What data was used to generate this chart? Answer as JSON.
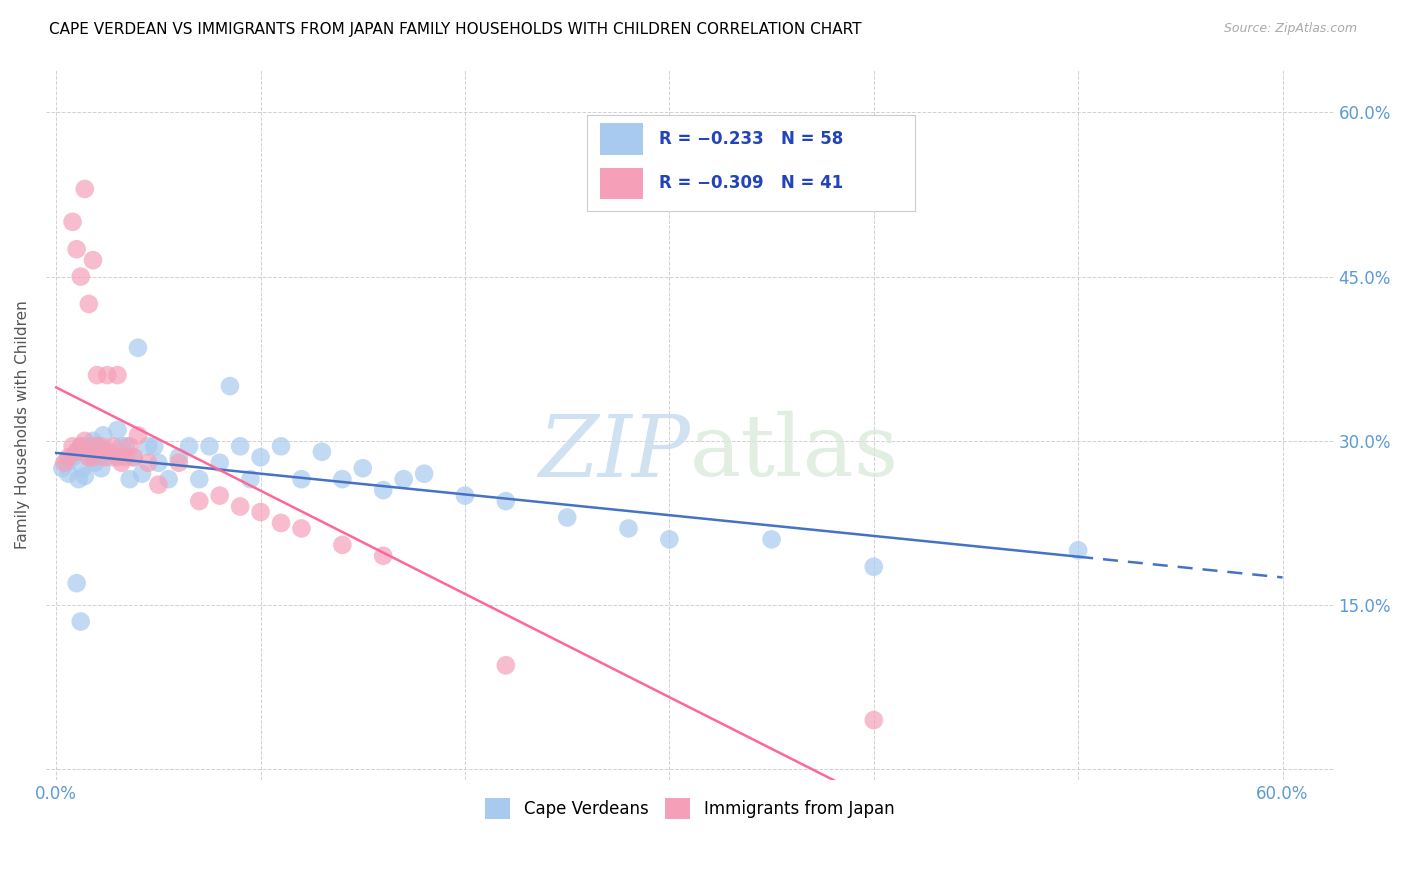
{
  "title": "CAPE VERDEAN VS IMMIGRANTS FROM JAPAN FAMILY HOUSEHOLDS WITH CHILDREN CORRELATION CHART",
  "source": "Source: ZipAtlas.com",
  "ylabel": "Family Households with Children",
  "x_ticks": [
    0.0,
    0.1,
    0.2,
    0.3,
    0.4,
    0.5,
    0.6
  ],
  "x_tick_labels": [
    "0.0%",
    "",
    "",
    "",
    "",
    "",
    "60.0%"
  ],
  "y_tick_positions": [
    0.0,
    0.15,
    0.3,
    0.45,
    0.6
  ],
  "y_tick_labels_right": [
    "",
    "15.0%",
    "30.0%",
    "45.0%",
    "60.0%"
  ],
  "legend_r1": "-0.233",
  "legend_n1": "58",
  "legend_r2": "-0.309",
  "legend_n2": "41",
  "legend_label1": "Cape Verdeans",
  "legend_label2": "Immigrants from Japan",
  "color_blue": "#A8CAEE",
  "color_pink": "#F5A0B8",
  "line_color_blue": "#4472C4",
  "line_color_pink": "#FF6699",
  "blue_x": [
    0.003,
    0.005,
    0.006,
    0.008,
    0.01,
    0.011,
    0.012,
    0.013,
    0.014,
    0.015,
    0.016,
    0.017,
    0.018,
    0.019,
    0.02,
    0.021,
    0.022,
    0.023,
    0.025,
    0.027,
    0.03,
    0.032,
    0.034,
    0.036,
    0.038,
    0.04,
    0.042,
    0.045,
    0.048,
    0.05,
    0.055,
    0.06,
    0.065,
    0.07,
    0.075,
    0.08,
    0.085,
    0.09,
    0.095,
    0.1,
    0.11,
    0.12,
    0.13,
    0.14,
    0.15,
    0.16,
    0.17,
    0.18,
    0.2,
    0.22,
    0.25,
    0.28,
    0.3,
    0.35,
    0.4,
    0.5,
    0.01,
    0.012
  ],
  "blue_y": [
    0.275,
    0.28,
    0.27,
    0.285,
    0.29,
    0.265,
    0.295,
    0.275,
    0.268,
    0.295,
    0.285,
    0.295,
    0.3,
    0.28,
    0.295,
    0.285,
    0.275,
    0.305,
    0.29,
    0.285,
    0.31,
    0.295,
    0.295,
    0.265,
    0.285,
    0.385,
    0.27,
    0.295,
    0.295,
    0.28,
    0.265,
    0.285,
    0.295,
    0.265,
    0.295,
    0.28,
    0.35,
    0.295,
    0.265,
    0.285,
    0.295,
    0.265,
    0.29,
    0.265,
    0.275,
    0.255,
    0.265,
    0.27,
    0.25,
    0.245,
    0.23,
    0.22,
    0.21,
    0.21,
    0.185,
    0.2,
    0.17,
    0.135
  ],
  "pink_x": [
    0.004,
    0.006,
    0.008,
    0.01,
    0.012,
    0.014,
    0.016,
    0.018,
    0.02,
    0.022,
    0.024,
    0.026,
    0.028,
    0.03,
    0.032,
    0.034,
    0.036,
    0.038,
    0.04,
    0.045,
    0.05,
    0.06,
    0.07,
    0.08,
    0.09,
    0.1,
    0.11,
    0.12,
    0.14,
    0.16,
    0.008,
    0.01,
    0.012,
    0.014,
    0.016,
    0.018,
    0.02,
    0.025,
    0.03,
    0.22,
    0.4
  ],
  "pink_y": [
    0.28,
    0.285,
    0.295,
    0.29,
    0.295,
    0.3,
    0.285,
    0.285,
    0.295,
    0.295,
    0.285,
    0.29,
    0.295,
    0.285,
    0.28,
    0.285,
    0.295,
    0.285,
    0.305,
    0.28,
    0.26,
    0.28,
    0.245,
    0.25,
    0.24,
    0.235,
    0.225,
    0.22,
    0.205,
    0.195,
    0.5,
    0.475,
    0.45,
    0.53,
    0.425,
    0.465,
    0.36,
    0.36,
    0.36,
    0.095,
    0.045
  ]
}
